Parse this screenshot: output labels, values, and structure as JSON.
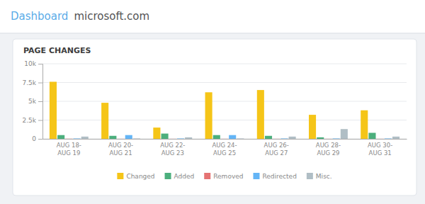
{
  "header": [
    "Dashboard",
    "microsoft.com"
  ],
  "chart_data": {
    "type": "bar",
    "title": "PAGE CHANGES",
    "categories": [
      "AUG 18-\nAUG 19",
      "AUG 20-\nAUG 21",
      "AUG 22-\nAUG 23",
      "AUG 24-\nAUG 25",
      "AUG 26-\nAUG 27",
      "AUG 28-\nAUG 29",
      "AUG 30-\nAUG 31"
    ],
    "series": [
      {
        "name": "Changed",
        "color": "#f5c518",
        "values": [
          7600,
          4800,
          1500,
          6200,
          6500,
          3200,
          3800
        ]
      },
      {
        "name": "Added",
        "color": "#4caf7d",
        "values": [
          500,
          400,
          700,
          500,
          400,
          200,
          800
        ]
      },
      {
        "name": "Removed",
        "color": "#e57373",
        "values": [
          20,
          10,
          10,
          10,
          10,
          10,
          10
        ]
      },
      {
        "name": "Redirected",
        "color": "#64b5f6",
        "values": [
          50,
          500,
          50,
          500,
          50,
          50,
          50
        ]
      },
      {
        "name": "Misc.",
        "color": "#b0bec5",
        "values": [
          300,
          50,
          200,
          50,
          300,
          1300,
          300
        ]
      }
    ],
    "ylim": [
      0,
      10000
    ],
    "yticks": [
      0,
      {
        "value": 2500,
        "label": "2.5k"
      },
      {
        "value": 5000,
        "label": "5k"
      },
      {
        "value": 7500,
        "label": "7.5k"
      },
      {
        "value": 10000,
        "label": "10k"
      }
    ],
    "grid": true,
    "legend": "bottom"
  }
}
